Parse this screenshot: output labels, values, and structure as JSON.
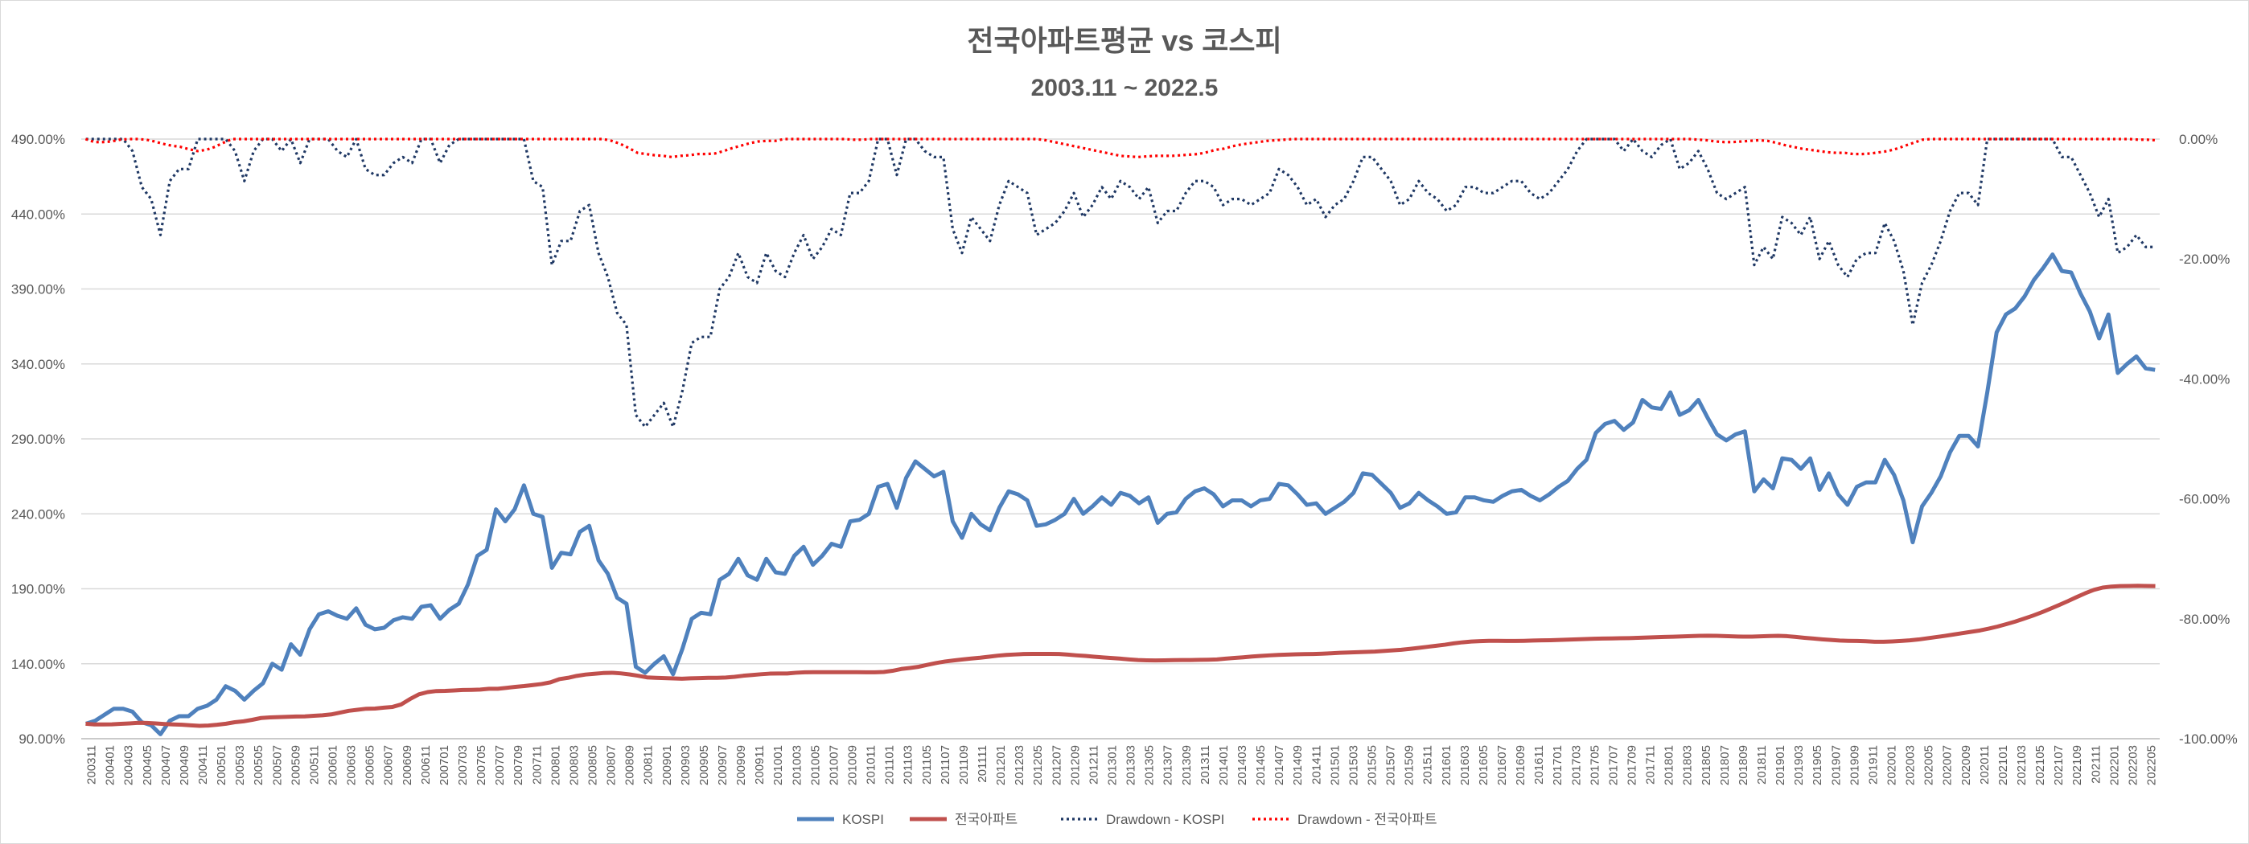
{
  "chart_data": {
    "type": "line",
    "title": "전국아파트평균 vs 코스피",
    "subtitle": "2003.11 ~ 2022.5",
    "left_axis": {
      "ylim": [
        90,
        490
      ],
      "ticks": [
        "90.00%",
        "140.00%",
        "190.00%",
        "240.00%",
        "290.00%",
        "340.00%",
        "390.00%",
        "440.00%",
        "490.00%"
      ],
      "tick_values": [
        90,
        140,
        190,
        240,
        290,
        340,
        390,
        440,
        490
      ]
    },
    "right_axis": {
      "ylim": [
        -100,
        0
      ],
      "ticks": [
        "0.00%",
        "-20.00%",
        "-40.00%",
        "-60.00%",
        "-80.00%",
        "-100.00%"
      ],
      "tick_values": [
        0,
        -20,
        -40,
        -60,
        -80,
        -100
      ]
    },
    "x_labels": [
      "200311",
      "200401",
      "200403",
      "200405",
      "200407",
      "200409",
      "200411",
      "200501",
      "200503",
      "200505",
      "200507",
      "200509",
      "200511",
      "200601",
      "200603",
      "200605",
      "200607",
      "200609",
      "200611",
      "200701",
      "200703",
      "200705",
      "200707",
      "200709",
      "200711",
      "200801",
      "200803",
      "200805",
      "200807",
      "200809",
      "200811",
      "200901",
      "200903",
      "200905",
      "200907",
      "200909",
      "200911",
      "201001",
      "201003",
      "201005",
      "201007",
      "201009",
      "201011",
      "201101",
      "201103",
      "201105",
      "201107",
      "201109",
      "201111",
      "201201",
      "201203",
      "201205",
      "201207",
      "201209",
      "201211",
      "201301",
      "201303",
      "201305",
      "201307",
      "201309",
      "201311",
      "201401",
      "201403",
      "201405",
      "201407",
      "201409",
      "201411",
      "201501",
      "201503",
      "201505",
      "201507",
      "201509",
      "201511",
      "201601",
      "201603",
      "201605",
      "201607",
      "201609",
      "201611",
      "201701",
      "201703",
      "201705",
      "201707",
      "201709",
      "201711",
      "201801",
      "201803",
      "201805",
      "201807",
      "201809",
      "201811",
      "201901",
      "201903",
      "201905",
      "201907",
      "201909",
      "201911",
      "202001",
      "202003",
      "202005",
      "202007",
      "202009",
      "202011",
      "202101",
      "202103",
      "202105",
      "202107",
      "202109",
      "202111",
      "202201",
      "202203",
      "202205"
    ],
    "grid": true,
    "legend_position": "bottom",
    "series": [
      {
        "name": "KOSPI",
        "axis": "left",
        "color": "#4f81bd",
        "style": "solid",
        "values": [
          100,
          102,
          106,
          110,
          110,
          108,
          101,
          99,
          93,
          102,
          105,
          105,
          110,
          112,
          116,
          125,
          122,
          116,
          122,
          127,
          140,
          136,
          153,
          146,
          163,
          173,
          175,
          172,
          170,
          177,
          166,
          163,
          164,
          169,
          171,
          170,
          178,
          179,
          170,
          176,
          180,
          193,
          212,
          216,
          243,
          235,
          243,
          259,
          240,
          238,
          204,
          214,
          213,
          228,
          232,
          209,
          200,
          184,
          180,
          138,
          134,
          140,
          145,
          133,
          150,
          170,
          174,
          173,
          196,
          200,
          210,
          199,
          196,
          210,
          201,
          200,
          212,
          218,
          206,
          212,
          220,
          218,
          235,
          236,
          240,
          258,
          260,
          244,
          264,
          275,
          270,
          265,
          268,
          235,
          224,
          240,
          233,
          229,
          244,
          255,
          253,
          249,
          232,
          233,
          236,
          240,
          250,
          240,
          245,
          251,
          246,
          254,
          252,
          247,
          251,
          234,
          240,
          241,
          250,
          255,
          257,
          253,
          245,
          249,
          249,
          245,
          249,
          250,
          260,
          259,
          253,
          246,
          247,
          240,
          244,
          248,
          254,
          267,
          266,
          260,
          254,
          244,
          247,
          254,
          249,
          245,
          240,
          241,
          251,
          251,
          249,
          248,
          252,
          255,
          256,
          252,
          249,
          253,
          258,
          262,
          270,
          276,
          294,
          300,
          302,
          296,
          301,
          316,
          311,
          310,
          321,
          306,
          309,
          316,
          304,
          293,
          289,
          293,
          295,
          255,
          263,
          257,
          277,
          276,
          270,
          277,
          256,
          267,
          253,
          246,
          258,
          261,
          261,
          276,
          266,
          249,
          221,
          245,
          254,
          265,
          281,
          292,
          292,
          285,
          321,
          361,
          373,
          377,
          385,
          396,
          404,
          413,
          402,
          401,
          387,
          375,
          357,
          373,
          334,
          340,
          345,
          337,
          336
        ]
      },
      {
        "name": "전국아파트",
        "axis": "left",
        "color": "#c0504d",
        "style": "solid",
        "values": [
          100,
          99.5,
          99.5,
          99.6,
          99.9,
          100.2,
          100.6,
          100.5,
          100.2,
          99.8,
          99.5,
          99.3,
          98.9,
          98.6,
          98.8,
          99.3,
          100.0,
          101.0,
          101.6,
          102.6,
          103.8,
          104.2,
          104.4,
          104.6,
          104.8,
          104.9,
          105.3,
          105.6,
          106.2,
          107.4,
          108.6,
          109.3,
          110.0,
          110.1,
          110.7,
          111.2,
          112.9,
          116.5,
          119.6,
          121.1,
          121.8,
          121.9,
          122.2,
          122.5,
          122.6,
          122.8,
          123.3,
          123.3,
          123.9,
          124.6,
          125.1,
          125.8,
          126.5,
          127.6,
          129.7,
          130.6,
          131.9,
          132.8,
          133.3,
          133.8,
          134.0,
          133.6,
          132.9,
          132.0,
          130.9,
          130.6,
          130.4,
          130.2,
          130.0,
          130.3,
          130.4,
          130.6,
          130.6,
          130.8,
          131.3,
          132.0,
          132.5,
          133.0,
          133.4,
          133.5,
          133.5,
          134.0,
          134.3,
          134.4,
          134.4,
          134.4,
          134.4,
          134.4,
          134.4,
          134.3,
          134.3,
          134.5,
          135.3,
          136.5,
          137.2,
          138.0,
          139.3,
          140.5,
          141.5,
          142.2,
          142.9,
          143.5,
          144.0,
          144.7,
          145.4,
          145.9,
          146.2,
          146.5,
          146.6,
          146.6,
          146.6,
          146.5,
          146.1,
          145.6,
          145.2,
          144.7,
          144.2,
          143.8,
          143.4,
          142.9,
          142.5,
          142.3,
          142.2,
          142.3,
          142.4,
          142.5,
          142.5,
          142.6,
          142.7,
          142.9,
          143.4,
          143.9,
          144.3,
          144.8,
          145.2,
          145.6,
          145.9,
          146.1,
          146.3,
          146.4,
          146.5,
          146.7,
          147.0,
          147.3,
          147.5,
          147.7,
          147.9,
          148.1,
          148.5,
          148.9,
          149.3,
          149.9,
          150.6,
          151.3,
          152.0,
          152.7,
          153.6,
          154.3,
          154.8,
          155.1,
          155.3,
          155.3,
          155.2,
          155.2,
          155.3,
          155.5,
          155.6,
          155.7,
          155.9,
          156.1,
          156.3,
          156.5,
          156.7,
          156.8,
          156.9,
          157.0,
          157.1,
          157.3,
          157.5,
          157.7,
          157.9,
          158.0,
          158.2,
          158.4,
          158.6,
          158.7,
          158.6,
          158.4,
          158.2,
          158.1,
          158.1,
          158.3,
          158.5,
          158.6,
          158.4,
          157.9,
          157.3,
          156.8,
          156.3,
          155.9,
          155.5,
          155.3,
          155.2,
          155.0,
          154.7,
          154.7,
          154.9,
          155.2,
          155.6,
          156.2,
          157.0,
          157.8,
          158.6,
          159.5,
          160.4,
          161.3,
          162.2,
          163.4,
          164.8,
          166.4,
          168.1,
          170.0,
          172.0,
          174.2,
          176.6,
          179.1,
          181.7,
          184.4,
          187.0,
          189.3,
          190.8,
          191.5,
          191.8,
          191.9,
          192.0,
          191.9,
          191.8
        ]
      },
      {
        "name": "Drawdown - KOSPI",
        "axis": "right",
        "color": "#1f3864",
        "style": "dotted",
        "values": [
          0,
          0,
          0,
          0,
          0,
          -2,
          -8,
          -10,
          -16,
          -7,
          -5,
          -5,
          0,
          0,
          0,
          0,
          -2,
          -7,
          -2,
          0,
          0,
          -2,
          0,
          -4,
          0,
          0,
          0,
          -2,
          -3,
          0,
          -5,
          -6,
          -6,
          -4,
          -3,
          -4,
          0,
          0,
          -4,
          -1,
          0,
          0,
          0,
          0,
          0,
          0,
          0,
          0,
          -7,
          -8,
          -21,
          -17,
          -17,
          -12,
          -11,
          -19,
          -23,
          -29,
          -31,
          -46,
          -48,
          -46,
          -44,
          -48,
          -42,
          -34,
          -33,
          -33,
          -25,
          -23,
          -19,
          -23,
          -24,
          -19,
          -22,
          -23,
          -19,
          -16,
          -20,
          -18,
          -15,
          -16,
          -9,
          -9,
          -7,
          0,
          0,
          -6,
          0,
          0,
          -2,
          -3,
          -3,
          -15,
          -19,
          -13,
          -15,
          -17,
          -11,
          -7,
          -8,
          -9,
          -16,
          -15,
          -14,
          -12,
          -9,
          -13,
          -11,
          -8,
          -10,
          -7,
          -8,
          -10,
          -8,
          -14,
          -12,
          -12,
          -9,
          -7,
          -7,
          -8,
          -11,
          -10,
          -10,
          -11,
          -10,
          -9,
          -5,
          -6,
          -8,
          -11,
          -10,
          -13,
          -11,
          -10,
          -7,
          -3,
          -3,
          -5,
          -7,
          -11,
          -10,
          -7,
          -9,
          -10,
          -12,
          -11,
          -8,
          -8,
          -9,
          -9,
          -8,
          -7,
          -7,
          -9,
          -10,
          -9,
          -7,
          -5,
          -2,
          0,
          0,
          0,
          0,
          -2,
          0,
          -2,
          -3,
          -1,
          0,
          -5,
          -4,
          -2,
          -5,
          -9,
          -10,
          -9,
          -8,
          -21,
          -18,
          -20,
          -13,
          -14,
          -16,
          -13,
          -20,
          -17,
          -21,
          -23,
          -20,
          -19,
          -19,
          -14,
          -17,
          -22,
          -31,
          -24,
          -21,
          -17,
          -12,
          -9,
          -9,
          -11,
          0,
          0,
          0,
          0,
          0,
          0,
          0,
          0,
          -3,
          -3,
          -6,
          -9,
          -13,
          -10,
          -19,
          -18,
          -16,
          -18,
          -18
        ]
      },
      {
        "name": "Drawdown - 전국아파트",
        "axis": "right",
        "color": "#ff0000",
        "style": "dotted",
        "values": [
          0,
          -0.5,
          -0.5,
          -0.4,
          -0.1,
          0,
          0,
          -0.1,
          -0.4,
          -0.8,
          -1.1,
          -1.3,
          -1.7,
          -2.0,
          -1.8,
          -1.3,
          -0.6,
          0,
          0,
          0,
          0,
          0,
          0,
          0,
          0,
          0,
          0,
          0,
          0,
          0,
          0,
          0,
          0,
          0,
          0,
          0,
          0,
          0,
          0,
          0,
          0,
          0,
          0,
          0,
          0,
          0,
          0,
          0,
          0,
          0,
          0,
          0,
          0,
          0,
          0,
          0,
          0,
          0,
          0,
          0,
          0,
          -0.3,
          -0.8,
          -1.5,
          -2.3,
          -2.5,
          -2.7,
          -2.8,
          -3.0,
          -2.8,
          -2.7,
          -2.5,
          -2.5,
          -2.4,
          -2.0,
          -1.5,
          -1.1,
          -0.7,
          -0.4,
          -0.3,
          -0.3,
          0,
          0,
          0,
          0,
          0,
          0,
          0,
          0,
          -0.1,
          -0.1,
          0,
          0,
          0,
          0,
          0,
          0,
          0,
          0,
          0,
          0,
          0,
          0,
          0,
          0,
          0,
          0,
          0,
          0,
          0,
          0,
          -0.1,
          -0.4,
          -0.7,
          -1.0,
          -1.3,
          -1.6,
          -1.9,
          -2.2,
          -2.5,
          -2.8,
          -2.9,
          -3.0,
          -2.9,
          -2.8,
          -2.8,
          -2.8,
          -2.7,
          -2.6,
          -2.5,
          -2.2,
          -1.8,
          -1.6,
          -1.2,
          -0.9,
          -0.7,
          -0.5,
          -0.3,
          -0.2,
          -0.1,
          0,
          0,
          0,
          0,
          0,
          0,
          0,
          0,
          0,
          0,
          0,
          0,
          0,
          0,
          0,
          0,
          0,
          0,
          0,
          0,
          0,
          0,
          0,
          0,
          0,
          0,
          0,
          0,
          0,
          0,
          0,
          0,
          0,
          0,
          0,
          0,
          0,
          0,
          0,
          0,
          0,
          0,
          0,
          0,
          0,
          0,
          0,
          -0.1,
          -0.2,
          -0.4,
          -0.5,
          -0.5,
          -0.4,
          -0.3,
          -0.2,
          -0.3,
          -0.6,
          -1.0,
          -1.3,
          -1.6,
          -1.8,
          -2.0,
          -2.2,
          -2.3,
          -2.3,
          -2.5,
          -2.5,
          -2.4,
          -2.2,
          -2.0,
          -1.6,
          -1.1,
          -0.6,
          -0.1,
          0,
          0,
          0,
          0,
          0,
          0,
          0,
          0,
          0,
          0,
          0,
          0,
          0,
          0,
          0,
          0,
          0,
          0,
          0,
          0,
          0,
          0,
          0,
          0,
          -0.1,
          -0.1,
          -0.2
        ]
      }
    ]
  }
}
